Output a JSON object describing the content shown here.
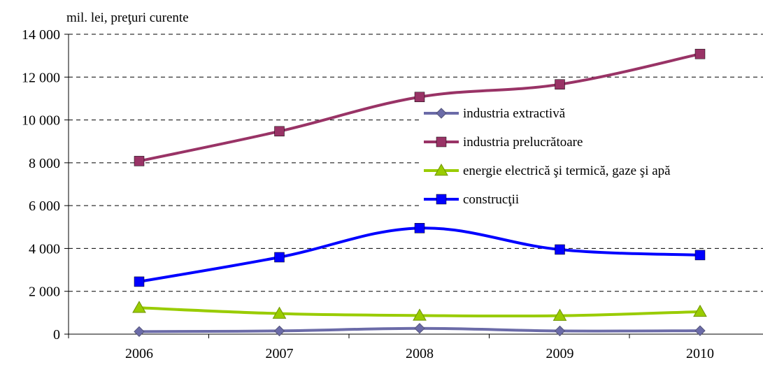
{
  "chart_data": {
    "type": "line",
    "unit_label": "mil. lei, preţuri curente",
    "categories": [
      "2006",
      "2007",
      "2008",
      "2009",
      "2010"
    ],
    "ylim": [
      0,
      14000
    ],
    "yticks": [
      0,
      2000,
      4000,
      6000,
      8000,
      10000,
      12000,
      14000
    ],
    "ytick_labels": [
      "0",
      "2 000",
      "4 000",
      "6 000",
      "8 000",
      "10 000",
      "12 000",
      "14 000"
    ],
    "grid": "horizontal dashed",
    "legend_position": "center-right",
    "series": [
      {
        "name": "industria extractivă",
        "values": [
          120,
          150,
          270,
          150,
          160
        ],
        "color": "#6b6ba8",
        "marker": "diamond"
      },
      {
        "name": "industria prelucrătoare",
        "values": [
          8080,
          9470,
          11070,
          11660,
          13080
        ],
        "color": "#993366",
        "marker": "square"
      },
      {
        "name": "energie electrică şi termică, gaze şi apă",
        "values": [
          1230,
          960,
          870,
          860,
          1050
        ],
        "color": "#99cc00",
        "marker": "triangle"
      },
      {
        "name": "construcţii",
        "values": [
          2450,
          3590,
          4950,
          3950,
          3690
        ],
        "color": "#0000ff",
        "marker": "square"
      }
    ]
  }
}
